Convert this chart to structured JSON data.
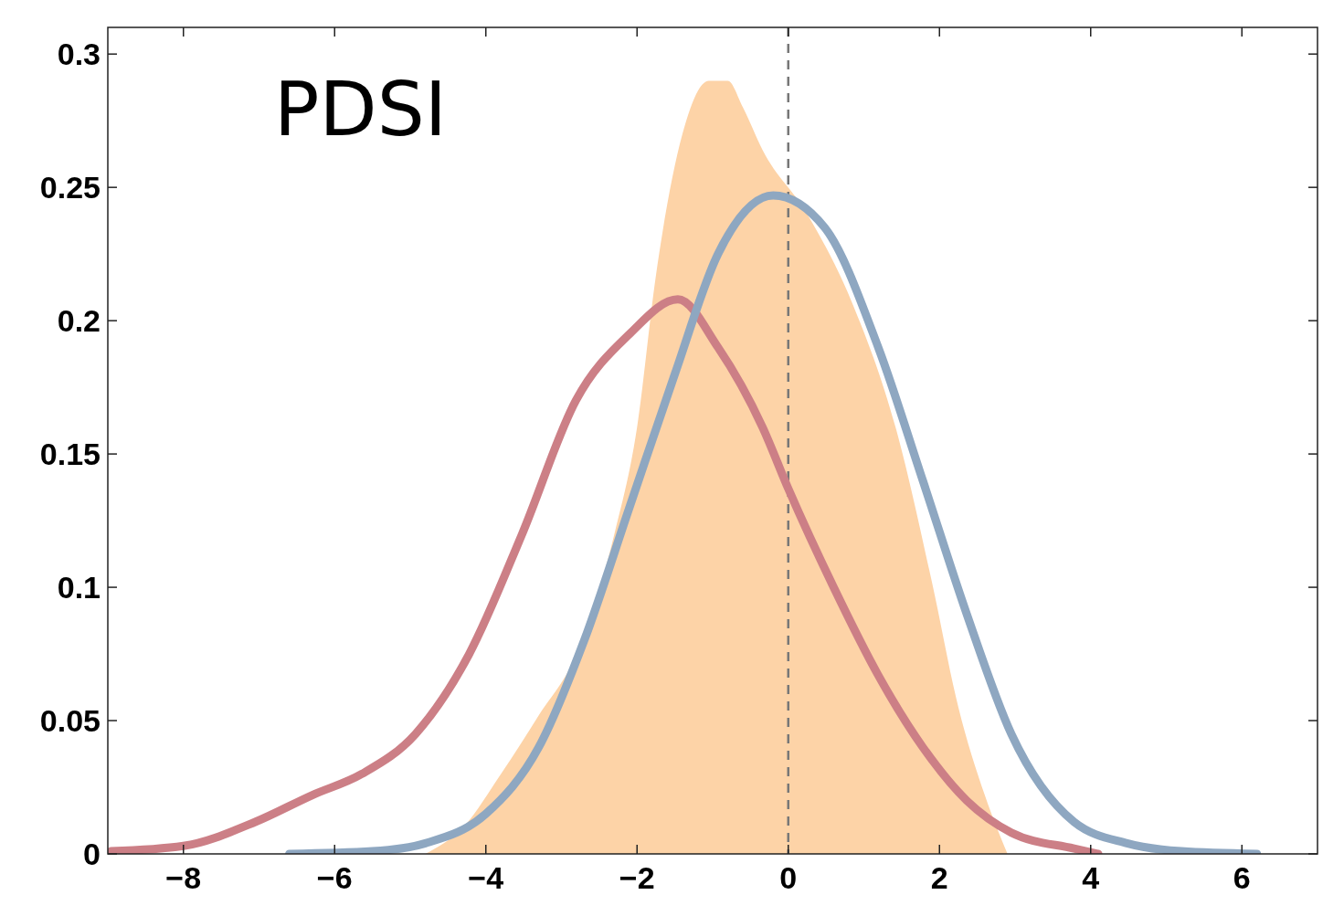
{
  "chart_data": {
    "type": "line",
    "title": "PDSI",
    "xlim": [
      -9,
      7
    ],
    "xticks": [
      -8,
      -6,
      -4,
      -2,
      0,
      2,
      4,
      6
    ],
    "ylim": [
      0,
      0.31
    ],
    "yticks": [
      0,
      0.05,
      0.1,
      0.15,
      0.2,
      0.25,
      0.3
    ],
    "grid": false,
    "line_style": "solid",
    "marker": "none",
    "series": [
      {
        "type": "area",
        "color": "#fdd3a7",
        "x": [
          -4.8,
          -4.3,
          -3.8,
          -3.3,
          -2.8,
          -2.3,
          -2.0,
          -1.75,
          -1.4,
          -1.05,
          -0.8,
          -0.6,
          -0.34,
          0.25,
          0.84,
          1.42,
          1.9,
          2.25,
          2.6,
          2.9
        ],
        "values": [
          0,
          0.01,
          0.03,
          0.052,
          0.075,
          0.12,
          0.16,
          0.217,
          0.27,
          0.29,
          0.29,
          0.28,
          0.264,
          0.24,
          0.207,
          0.16,
          0.102,
          0.055,
          0.022,
          0
        ]
      },
      {
        "color": "#cc7f86",
        "x": [
          -8.96,
          -8,
          -7.05,
          -6.3,
          -5.64,
          -4.93,
          -4.22,
          -3.52,
          -2.81,
          -2.1,
          -1.46,
          -0.93,
          -0.34,
          0,
          0.6,
          1.19,
          1.78,
          2.36,
          2.95,
          3.78,
          4.1
        ],
        "values": [
          0.001,
          0.003,
          0.012,
          0.022,
          0.03,
          0.045,
          0.075,
          0.12,
          0.17,
          0.195,
          0.208,
          0.19,
          0.16,
          0.137,
          0.1,
          0.067,
          0.04,
          0.02,
          0.008,
          0.002,
          0
        ]
      },
      {
        "color": "#8ea7c1",
        "x": [
          -6.6,
          -5.5,
          -4.8,
          -4,
          -3.3,
          -2.7,
          -2.1,
          -1.5,
          -0.93,
          -0.2,
          0.48,
          1.19,
          1.78,
          2.36,
          2.95,
          3.78,
          4.48,
          5.2,
          6.2
        ],
        "values": [
          0,
          0.001,
          0.004,
          0.015,
          0.04,
          0.08,
          0.13,
          0.18,
          0.225,
          0.247,
          0.235,
          0.19,
          0.14,
          0.09,
          0.045,
          0.012,
          0.004,
          0.001,
          0
        ]
      }
    ],
    "ref_lines": [
      {
        "axis": "x",
        "value": 0,
        "color": "#777777",
        "line_style": "dashed"
      }
    ]
  }
}
